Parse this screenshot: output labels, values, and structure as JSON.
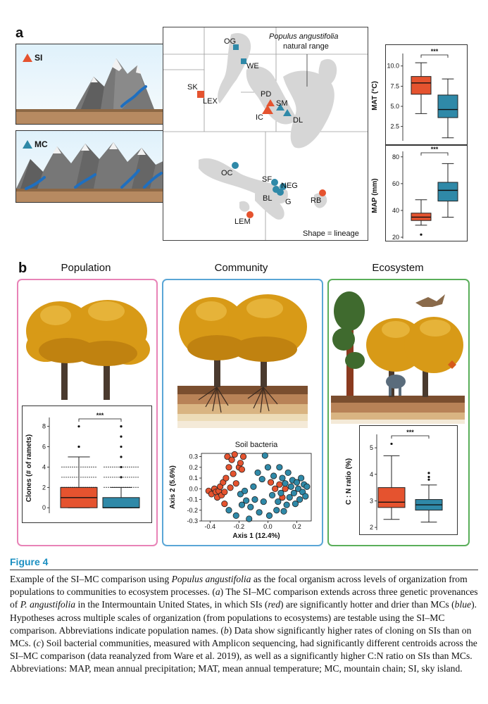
{
  "panel_a": {
    "letter": "a",
    "si_label": "SI",
    "mc_label": "MC",
    "map": {
      "range_title_line1": "Populus angustifolia",
      "range_title_line2": "natural range",
      "shape_note": "Shape = lineage",
      "sites": {
        "OG": "OG",
        "WE": "WE",
        "SK": "SK",
        "LEX": "LEX",
        "PD": "PD",
        "SM": "SM",
        "IC": "IC",
        "DL": "DL",
        "OC": "OC",
        "SF": "SF",
        "NEG": "NEG",
        "BL": "BL",
        "G": "G",
        "RB": "RB",
        "LEM": "LEM"
      }
    },
    "colors": {
      "si": "#e5532f",
      "mc": "#2f89a8"
    }
  },
  "chart_data": [
    {
      "type": "box",
      "ylabel": "MAT (°C)",
      "yticks": [
        "2.5",
        "5.0",
        "7.5",
        "10.0"
      ],
      "ylim": [
        0.9,
        11.2
      ],
      "significance": "***",
      "series": [
        {
          "name": "SI",
          "color": "#e5532f",
          "whisker_low": 4.1,
          "q1": 6.5,
          "median": 7.9,
          "q3": 8.7,
          "whisker_high": 10.4
        },
        {
          "name": "MC",
          "color": "#2f89a8",
          "whisker_low": 1.1,
          "q1": 3.6,
          "median": 4.6,
          "q3": 6.4,
          "whisker_high": 8.4
        }
      ]
    },
    {
      "type": "box",
      "ylabel": "MAP (mm)",
      "yticks": [
        "20",
        "40",
        "60",
        "80"
      ],
      "ylim": [
        20,
        82
      ],
      "significance": "***",
      "series": [
        {
          "name": "SI",
          "color": "#e5532f",
          "whisker_low": 29,
          "q1": 32.5,
          "median": 35,
          "q3": 38,
          "whisker_high": 48,
          "outliers": [
            22
          ]
        },
        {
          "name": "MC",
          "color": "#2f89a8",
          "whisker_low": 35,
          "q1": 47,
          "median": 55,
          "q3": 61,
          "whisker_high": 75
        }
      ]
    },
    {
      "type": "box",
      "ylabel": "Clones (# of ramets)",
      "yticks": [
        "0",
        "2",
        "4",
        "6",
        "8"
      ],
      "ylim": [
        -0.4,
        8.6
      ],
      "significance": "***",
      "series": [
        {
          "name": "SI",
          "color": "#e5532f",
          "whisker_low": 0,
          "q1": 0,
          "median": 1,
          "q3": 2,
          "whisker_high": 5,
          "outliers": [
            6,
            6,
            8
          ]
        },
        {
          "name": "MC",
          "color": "#2f89a8",
          "whisker_low": 0,
          "q1": 0,
          "median": 0,
          "q3": 1,
          "whisker_high": 2,
          "outliers": [
            3,
            4,
            5,
            6,
            7,
            8,
            8
          ]
        }
      ]
    },
    {
      "type": "scatter",
      "title": "Soil bacteria",
      "xlabel": "Axis 1 (12.4%)",
      "ylabel": "Axis 2 (5.6%)",
      "xticks": [
        "-0.4",
        "-0.2",
        "0.0",
        "0.2"
      ],
      "yticks": [
        "-0.3",
        "-0.2",
        "-0.1",
        "0.0",
        "0.1",
        "0.2",
        "0.3"
      ],
      "xlim": [
        -0.46,
        0.3
      ],
      "ylim": [
        -0.3,
        0.33
      ],
      "series": [
        {
          "name": "SI",
          "color": "#e5532f",
          "points": [
            [
              -0.41,
              -0.02
            ],
            [
              -0.39,
              -0.05
            ],
            [
              -0.37,
              0.0
            ],
            [
              -0.36,
              -0.03
            ],
            [
              -0.35,
              -0.08
            ],
            [
              -0.34,
              -0.02
            ],
            [
              -0.33,
              0.02
            ],
            [
              -0.32,
              -0.06
            ],
            [
              -0.31,
              0.06
            ],
            [
              -0.3,
              -0.14
            ],
            [
              -0.3,
              -0.03
            ],
            [
              -0.29,
              0.1
            ],
            [
              -0.28,
              0.3
            ],
            [
              -0.27,
              0.2
            ],
            [
              -0.26,
              0.01
            ],
            [
              -0.25,
              0.27
            ],
            [
              -0.24,
              0.14
            ],
            [
              -0.23,
              0.32
            ],
            [
              -0.22,
              0.05
            ],
            [
              -0.2,
              0.2
            ],
            [
              -0.19,
              0.24
            ],
            [
              -0.18,
              0.18
            ],
            [
              -0.17,
              0.3
            ],
            [
              0.02,
              0.06
            ],
            [
              0.05,
              0.0
            ],
            [
              0.08,
              0.04
            ],
            [
              0.1,
              -0.08
            ],
            [
              0.12,
              0.0
            ]
          ]
        },
        {
          "name": "MC",
          "color": "#2f89a8",
          "points": [
            [
              -0.27,
              -0.2
            ],
            [
              -0.22,
              -0.25
            ],
            [
              -0.19,
              -0.05
            ],
            [
              -0.18,
              -0.15
            ],
            [
              -0.16,
              -0.02
            ],
            [
              -0.15,
              -0.11
            ],
            [
              -0.13,
              -0.28
            ],
            [
              -0.12,
              -0.17
            ],
            [
              -0.1,
              0.02
            ],
            [
              -0.09,
              -0.1
            ],
            [
              -0.07,
              0.15
            ],
            [
              -0.06,
              -0.22
            ],
            [
              -0.04,
              0.09
            ],
            [
              -0.03,
              -0.12
            ],
            [
              -0.02,
              0.31
            ],
            [
              0.0,
              0.2
            ],
            [
              0.01,
              -0.25
            ],
            [
              0.03,
              -0.06
            ],
            [
              0.04,
              0.12
            ],
            [
              0.06,
              -0.2
            ],
            [
              0.07,
              -0.12
            ],
            [
              0.08,
              0.2
            ],
            [
              0.09,
              -0.04
            ],
            [
              0.1,
              0.1
            ],
            [
              0.11,
              -0.21
            ],
            [
              0.12,
              0.05
            ],
            [
              0.13,
              -0.15
            ],
            [
              0.14,
              0.15
            ],
            [
              0.15,
              -0.08
            ],
            [
              0.16,
              0.02
            ],
            [
              0.17,
              0.08
            ],
            [
              0.18,
              -0.04
            ],
            [
              0.19,
              -0.14
            ],
            [
              0.2,
              0.06
            ],
            [
              0.21,
              0.0
            ],
            [
              0.22,
              -0.1
            ],
            [
              0.23,
              0.1
            ],
            [
              0.24,
              -0.03
            ],
            [
              0.25,
              0.04
            ],
            [
              0.26,
              -0.07
            ],
            [
              0.27,
              0.02
            ]
          ]
        }
      ]
    },
    {
      "type": "box",
      "ylabel": "C : N ratio (%)",
      "yticks": [
        "2",
        "3",
        "4",
        "5"
      ],
      "ylim": [
        1.95,
        5.4
      ],
      "significance": "***",
      "series": [
        {
          "name": "SI",
          "color": "#e5532f",
          "whisker_low": 2.3,
          "q1": 2.75,
          "median": 2.95,
          "q3": 3.5,
          "whisker_high": 4.7,
          "outliers": [
            5.15
          ]
        },
        {
          "name": "MC",
          "color": "#2f89a8",
          "whisker_low": 2.2,
          "q1": 2.65,
          "median": 2.85,
          "q3": 3.05,
          "whisker_high": 3.6,
          "outliers": [
            3.8,
            3.9,
            4.05
          ]
        }
      ]
    }
  ],
  "panel_b": {
    "letter": "b",
    "titles": {
      "population": "Population",
      "community": "Community",
      "ecosystem": "Ecosystem"
    },
    "frame_colors": {
      "population": "#e883b7",
      "community": "#5aa6d6",
      "ecosystem": "#5aae5a"
    }
  },
  "figure": {
    "title": "Figure 4",
    "caption": [
      {
        "t": "Example of the SI–MC comparison using "
      },
      {
        "t": "Populus angustifolia",
        "i": true
      },
      {
        "t": " as the focal organism across levels of organization from populations to communities to ecosystem processes. ("
      },
      {
        "t": "a",
        "i": true
      },
      {
        "t": ") The SI–MC comparison extends across three genetic provenances of "
      },
      {
        "t": "P. angustifolia",
        "i": true
      },
      {
        "t": " in the Intermountain United States, in which SIs ("
      },
      {
        "t": "red",
        "i": true
      },
      {
        "t": ") are significantly hotter and drier than MCs ("
      },
      {
        "t": "blue",
        "i": true
      },
      {
        "t": "). Hypotheses across multiple scales of organization (from populations to ecosystems) are testable using the SI–MC comparison. Abbreviations indicate population names. ("
      },
      {
        "t": "b",
        "i": true
      },
      {
        "t": ") Data show significantly higher rates of cloning on SIs than on MCs. ("
      },
      {
        "t": "c",
        "i": true
      },
      {
        "t": ") Soil bacterial communities, measured with Amplicon sequencing, had significantly different centroids across the SI–MC comparison (data reanalyzed from Ware et al. 2019), as well as a significantly higher C:N ratio on SIs than MCs. Abbreviations: MAP, mean annual precipitation; MAT, mean annual temperature; MC, mountain chain; SI, sky island."
      }
    ]
  }
}
